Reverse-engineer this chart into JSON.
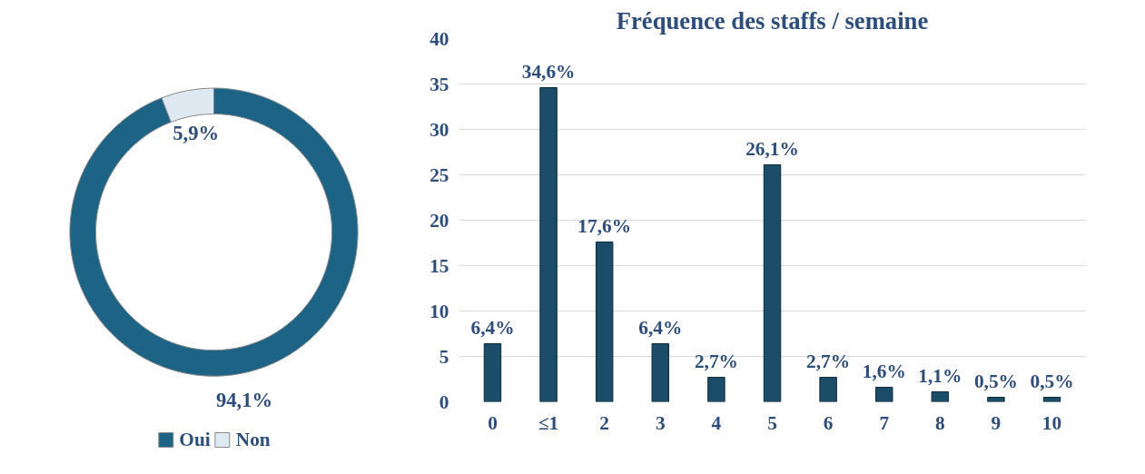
{
  "chart_data": [
    {
      "type": "donut",
      "categories": [
        "Oui",
        "Non"
      ],
      "values": [
        94.1,
        5.9
      ],
      "colors": [
        "#1d6385",
        "#dfe9f1"
      ],
      "value_labels": [
        "94,1%",
        "5,9%"
      ],
      "legend": "bottom"
    },
    {
      "type": "bar",
      "title": "Fréquence des staffs / semaine",
      "categories": [
        "0",
        "≤1",
        "2",
        "3",
        "4",
        "5",
        "6",
        "7",
        "8",
        "9",
        "10"
      ],
      "values": [
        6.4,
        34.6,
        17.6,
        6.4,
        2.7,
        26.1,
        2.7,
        1.6,
        1.1,
        0.5,
        0.5
      ],
      "value_labels": [
        "6,4%",
        "34,6%",
        "17,6%",
        "6,4%",
        "2,7%",
        "26,1%",
        "2,7%",
        "1,6%",
        "1,1%",
        "0,5%",
        "0,5%"
      ],
      "color": "#1b4d68",
      "ylim": [
        0,
        40
      ],
      "yticks": [
        0,
        5,
        10,
        15,
        20,
        25,
        30,
        35,
        40
      ],
      "grid": "y"
    }
  ]
}
